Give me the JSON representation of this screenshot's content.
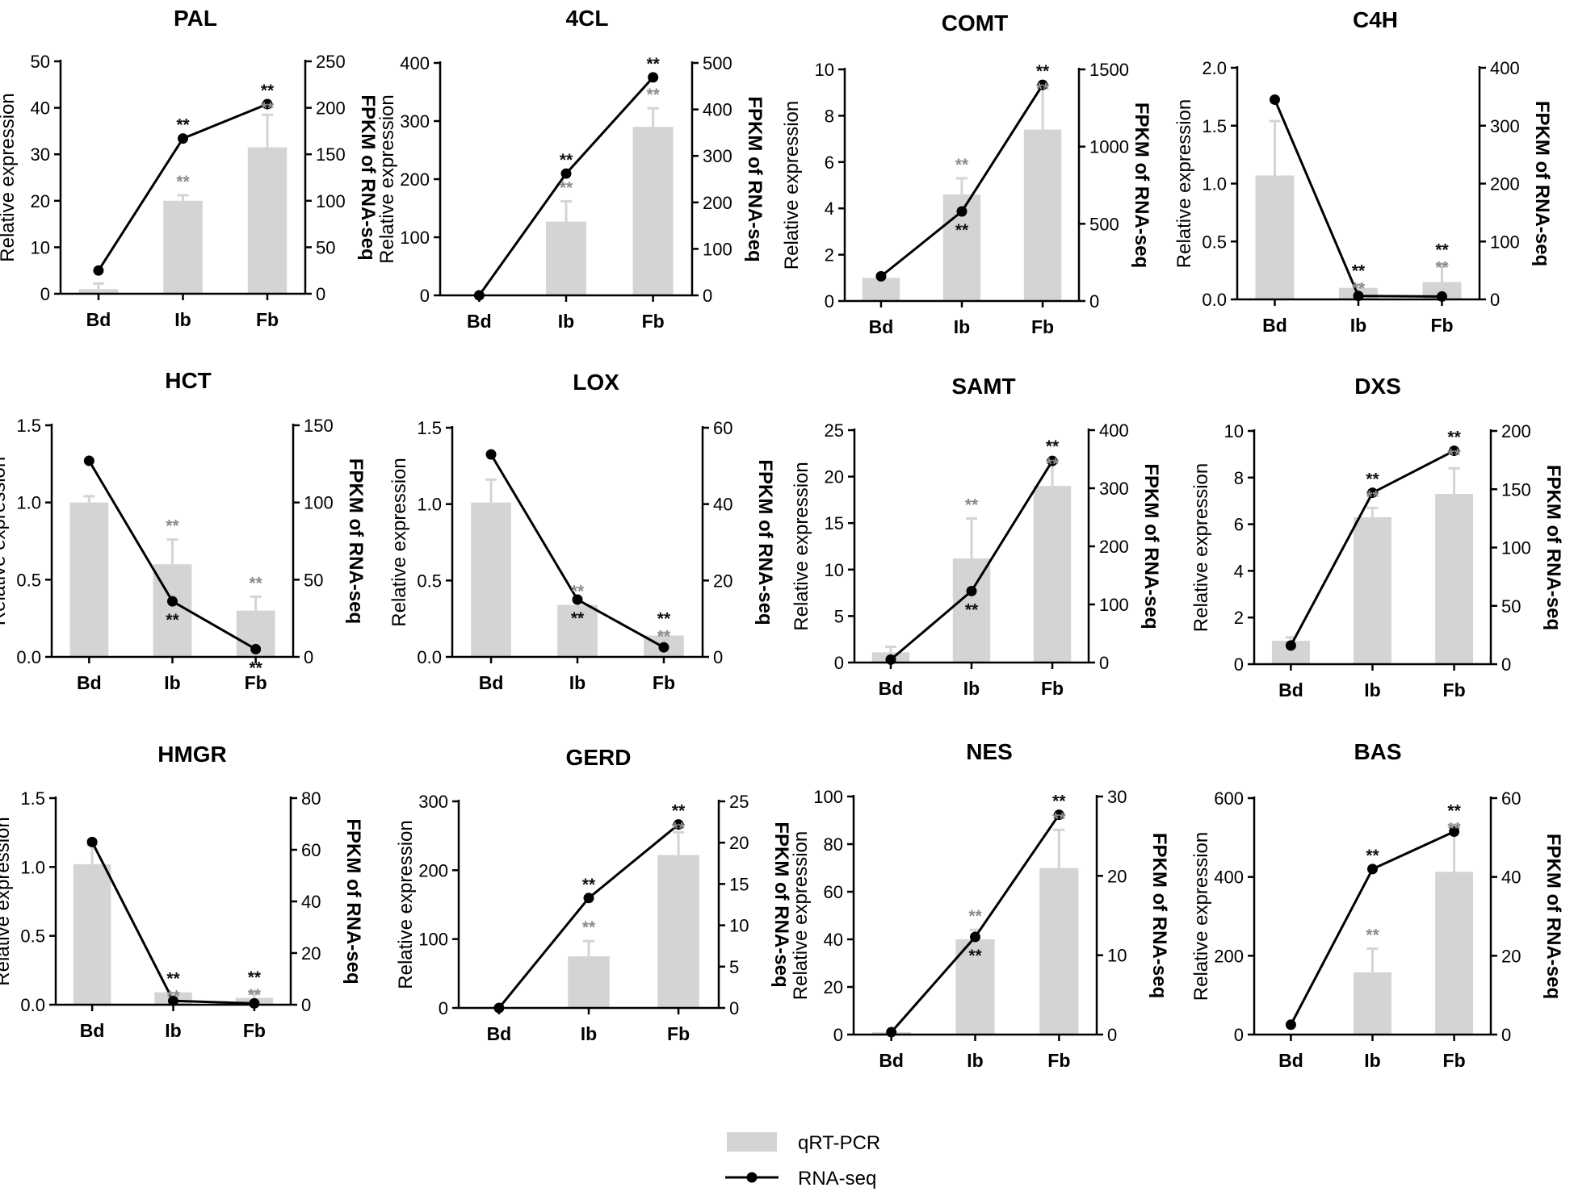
{
  "legend": {
    "bar_label": "qRT-PCR",
    "line_label": "RNA-seq"
  },
  "colors": {
    "bar": "#d3d4d6",
    "line": "#000000",
    "sig_black": "#111111",
    "sig_gray": "#8c8c8c"
  },
  "axis_labels": {
    "left": "Relative expression",
    "right": "FPKM of RNA-seq"
  },
  "chart_data": [
    {
      "type": "bar",
      "title": "PAL",
      "categories": [
        "Bd",
        "Ib",
        "Fb"
      ],
      "ylabel": "Relative expression",
      "y2label": "FPKM of RNA-seq",
      "ylim": [
        0,
        50
      ],
      "yticks": [
        0,
        10,
        20,
        30,
        40,
        50
      ],
      "y2lim": [
        0,
        250
      ],
      "y2ticks": [
        0,
        50,
        100,
        150,
        200,
        250
      ],
      "series": [
        {
          "name": "qRT-PCR",
          "axis": "left",
          "values": [
            1,
            20,
            31.5
          ],
          "errors": [
            1.2,
            1.2,
            7
          ]
        },
        {
          "name": "RNA-seq",
          "axis": "right",
          "values": [
            25,
            167,
            204
          ]
        }
      ],
      "sig_bar": [
        "",
        "**",
        "**"
      ],
      "sig_line": [
        "",
        "**",
        "**"
      ],
      "sig_line_pos": [
        "",
        "above",
        "above"
      ]
    },
    {
      "type": "bar",
      "title": "4CL",
      "categories": [
        "Bd",
        "Ib",
        "Fb"
      ],
      "ylabel": "Relative expression",
      "y2label": "FPKM of RNA-seq",
      "ylim": [
        0,
        400
      ],
      "yticks": [
        0,
        100,
        200,
        300,
        400
      ],
      "y2lim": [
        0,
        500
      ],
      "y2ticks": [
        0,
        100,
        200,
        300,
        400,
        500
      ],
      "series": [
        {
          "name": "qRT-PCR",
          "axis": "left",
          "values": [
            1,
            127,
            290
          ],
          "errors": [
            0,
            35,
            32
          ]
        },
        {
          "name": "RNA-seq",
          "axis": "right",
          "values": [
            0,
            262,
            469
          ]
        }
      ],
      "sig_bar": [
        "",
        "**",
        "**"
      ],
      "sig_line": [
        "",
        "**",
        "**"
      ],
      "sig_line_pos": [
        "",
        "above",
        "above"
      ]
    },
    {
      "type": "bar",
      "title": "COMT",
      "categories": [
        "Bd",
        "Ib",
        "Fb"
      ],
      "ylabel": "Relative expression",
      "y2label": "FPKM of RNA-seq",
      "ylim": [
        0,
        10
      ],
      "yticks": [
        0,
        2,
        4,
        6,
        8,
        10
      ],
      "y2lim": [
        0,
        1500
      ],
      "y2ticks": [
        0,
        500,
        1000,
        1500
      ],
      "series": [
        {
          "name": "qRT-PCR",
          "axis": "left",
          "values": [
            1,
            4.6,
            7.4
          ],
          "errors": [
            0,
            0.7,
            1.9
          ]
        },
        {
          "name": "RNA-seq",
          "axis": "right",
          "values": [
            160,
            580,
            1400
          ]
        }
      ],
      "sig_bar": [
        "",
        "**",
        "**"
      ],
      "sig_line": [
        "",
        "**",
        "**"
      ],
      "sig_line_pos": [
        "",
        "below",
        "above"
      ]
    },
    {
      "type": "bar",
      "title": "C4H",
      "categories": [
        "Bd",
        "Ib",
        "Fb"
      ],
      "ylabel": "Relative expression",
      "y2label": "FPKM of RNA-seq",
      "ylim": [
        0,
        2.0
      ],
      "yticks": [
        0.0,
        0.5,
        1.0,
        1.5,
        2.0
      ],
      "y2lim": [
        0,
        400
      ],
      "y2ticks": [
        0,
        100,
        200,
        300,
        400
      ],
      "series": [
        {
          "name": "qRT-PCR",
          "axis": "left",
          "values": [
            1.07,
            0.1,
            0.15
          ],
          "errors": [
            0.47,
            0.03,
            0.16
          ]
        },
        {
          "name": "RNA-seq",
          "axis": "right",
          "values": [
            345,
            6,
            5
          ]
        }
      ],
      "sig_bar": [
        "",
        "**",
        "**"
      ],
      "sig_line": [
        "",
        "**",
        "**"
      ],
      "sig_line_pos": [
        "",
        "above",
        "above"
      ]
    },
    {
      "type": "bar",
      "title": "HCT",
      "categories": [
        "Bd",
        "Ib",
        "Fb"
      ],
      "ylabel": "Relative expression",
      "y2label": "FPKM of RNA-seq",
      "ylim": [
        0,
        1.5
      ],
      "yticks": [
        0.0,
        0.5,
        1.0,
        1.5
      ],
      "y2lim": [
        0,
        150
      ],
      "y2ticks": [
        0,
        50,
        100,
        150
      ],
      "series": [
        {
          "name": "qRT-PCR",
          "axis": "left",
          "values": [
            1.0,
            0.6,
            0.3
          ],
          "errors": [
            0.04,
            0.16,
            0.09
          ]
        },
        {
          "name": "RNA-seq",
          "axis": "right",
          "values": [
            127,
            36,
            5
          ]
        }
      ],
      "sig_bar": [
        "",
        "**",
        "**"
      ],
      "sig_line": [
        "",
        "**",
        "**"
      ],
      "sig_line_pos": [
        "",
        "below",
        "below"
      ]
    },
    {
      "type": "bar",
      "title": "LOX",
      "categories": [
        "Bd",
        "Ib",
        "Fb"
      ],
      "ylabel": "Relative expression",
      "y2label": "FPKM of RNA-seq",
      "ylim": [
        0,
        1.5
      ],
      "yticks": [
        0.0,
        0.5,
        1.0,
        1.5
      ],
      "y2lim": [
        0,
        60
      ],
      "y2ticks": [
        0,
        20,
        40,
        60
      ],
      "series": [
        {
          "name": "qRT-PCR",
          "axis": "left",
          "values": [
            1.01,
            0.34,
            0.14
          ],
          "errors": [
            0.15,
            0.0,
            0.02
          ]
        },
        {
          "name": "RNA-seq",
          "axis": "right",
          "values": [
            53,
            15,
            2.5
          ]
        }
      ],
      "sig_bar": [
        "",
        "**",
        "**"
      ],
      "sig_line": [
        "",
        "**",
        "**"
      ],
      "sig_line_pos": [
        "",
        "below",
        "above"
      ]
    },
    {
      "type": "bar",
      "title": "SAMT",
      "categories": [
        "Bd",
        "Ib",
        "Fb"
      ],
      "ylabel": "Relative expression",
      "y2label": "FPKM of RNA-seq",
      "ylim": [
        0,
        25
      ],
      "yticks": [
        0,
        5,
        10,
        15,
        20,
        25
      ],
      "y2lim": [
        0,
        400
      ],
      "y2ticks": [
        0,
        100,
        200,
        300,
        400
      ],
      "series": [
        {
          "name": "qRT-PCR",
          "axis": "left",
          "values": [
            1.1,
            11.2,
            19.0
          ],
          "errors": [
            0.6,
            4.3,
            2.8
          ]
        },
        {
          "name": "RNA-seq",
          "axis": "right",
          "values": [
            5,
            123,
            347
          ]
        }
      ],
      "sig_bar": [
        "",
        "**",
        "**"
      ],
      "sig_line": [
        "",
        "**",
        "**"
      ],
      "sig_line_pos": [
        "",
        "below",
        "above"
      ]
    },
    {
      "type": "bar",
      "title": "DXS",
      "categories": [
        "Bd",
        "Ib",
        "Fb"
      ],
      "ylabel": "Relative expression",
      "y2label": "FPKM of RNA-seq",
      "ylim": [
        0,
        10
      ],
      "yticks": [
        0,
        2,
        4,
        6,
        8,
        10
      ],
      "y2lim": [
        0,
        200
      ],
      "y2ticks": [
        0,
        50,
        100,
        150,
        200
      ],
      "series": [
        {
          "name": "qRT-PCR",
          "axis": "left",
          "values": [
            1.0,
            6.3,
            7.3
          ],
          "errors": [
            0.15,
            0.4,
            1.1
          ]
        },
        {
          "name": "RNA-seq",
          "axis": "right",
          "values": [
            16,
            147,
            183
          ]
        }
      ],
      "sig_bar": [
        "",
        "**",
        "**"
      ],
      "sig_line": [
        "",
        "**",
        "**"
      ],
      "sig_line_pos": [
        "",
        "above",
        "above"
      ]
    },
    {
      "type": "bar",
      "title": "HMGR",
      "categories": [
        "Bd",
        "Ib",
        "Fb"
      ],
      "ylabel": "Relative expression",
      "y2label": "FPKM of RNA-seq",
      "ylim": [
        0,
        1.5
      ],
      "yticks": [
        0.0,
        0.5,
        1.0,
        1.5
      ],
      "y2lim": [
        0,
        80
      ],
      "y2ticks": [
        0,
        20,
        40,
        60,
        80
      ],
      "series": [
        {
          "name": "qRT-PCR",
          "axis": "left",
          "values": [
            1.02,
            0.09,
            0.05
          ],
          "errors": [
            0.14,
            0.0,
            0.05
          ]
        },
        {
          "name": "RNA-seq",
          "axis": "right",
          "values": [
            63,
            1.5,
            0.5
          ]
        }
      ],
      "sig_bar": [
        "",
        "**",
        "**"
      ],
      "sig_line": [
        "",
        "**",
        "**"
      ],
      "sig_line_pos": [
        "",
        "above",
        "above"
      ]
    },
    {
      "type": "bar",
      "title": "GERD",
      "categories": [
        "Bd",
        "Ib",
        "Fb"
      ],
      "ylabel": "Relative expression",
      "y2label": "FPKM of RNA-seq",
      "ylim": [
        0,
        300
      ],
      "yticks": [
        0,
        100,
        200,
        300
      ],
      "y2lim": [
        0,
        25
      ],
      "y2ticks": [
        0,
        5,
        10,
        15,
        20,
        25
      ],
      "series": [
        {
          "name": "qRT-PCR",
          "axis": "left",
          "values": [
            1,
            75,
            222
          ],
          "errors": [
            0,
            22,
            33
          ]
        },
        {
          "name": "RNA-seq",
          "axis": "right",
          "values": [
            0,
            13.3,
            22.2
          ]
        }
      ],
      "sig_bar": [
        "",
        "**",
        "**"
      ],
      "sig_line": [
        "",
        "**",
        "**"
      ],
      "sig_line_pos": [
        "",
        "above",
        "above"
      ]
    },
    {
      "type": "bar",
      "title": "NES",
      "categories": [
        "Bd",
        "Ib",
        "Fb"
      ],
      "ylabel": "Relative expression",
      "y2label": "FPKM of RNA-seq",
      "ylim": [
        0,
        100
      ],
      "yticks": [
        0,
        20,
        40,
        60,
        80,
        100
      ],
      "y2lim": [
        0,
        30
      ],
      "y2ticks": [
        0,
        10,
        20,
        30
      ],
      "series": [
        {
          "name": "qRT-PCR",
          "axis": "left",
          "values": [
            1,
            40,
            70
          ],
          "errors": [
            0,
            4,
            16
          ]
        },
        {
          "name": "RNA-seq",
          "axis": "right",
          "values": [
            0.3,
            12.3,
            27.7
          ]
        }
      ],
      "sig_bar": [
        "",
        "**",
        "**"
      ],
      "sig_line": [
        "",
        "**",
        "**"
      ],
      "sig_line_pos": [
        "",
        "below",
        "above"
      ]
    },
    {
      "type": "bar",
      "title": "BAS",
      "categories": [
        "Bd",
        "Ib",
        "Fb"
      ],
      "ylabel": "Relative expression",
      "y2label": "FPKM of RNA-seq",
      "ylim": [
        0,
        600
      ],
      "yticks": [
        0,
        200,
        400,
        600
      ],
      "y2lim": [
        0,
        60
      ],
      "y2ticks": [
        0,
        20,
        40,
        60
      ],
      "series": [
        {
          "name": "qRT-PCR",
          "axis": "left",
          "values": [
            1,
            158,
            413
          ],
          "errors": [
            0,
            60,
            120
          ]
        },
        {
          "name": "RNA-seq",
          "axis": "right",
          "values": [
            2.5,
            42,
            51.5
          ]
        }
      ],
      "sig_bar": [
        "",
        "**",
        "**"
      ],
      "sig_line": [
        "",
        "**",
        "**"
      ],
      "sig_line_pos": [
        "",
        "above",
        "above"
      ]
    }
  ]
}
